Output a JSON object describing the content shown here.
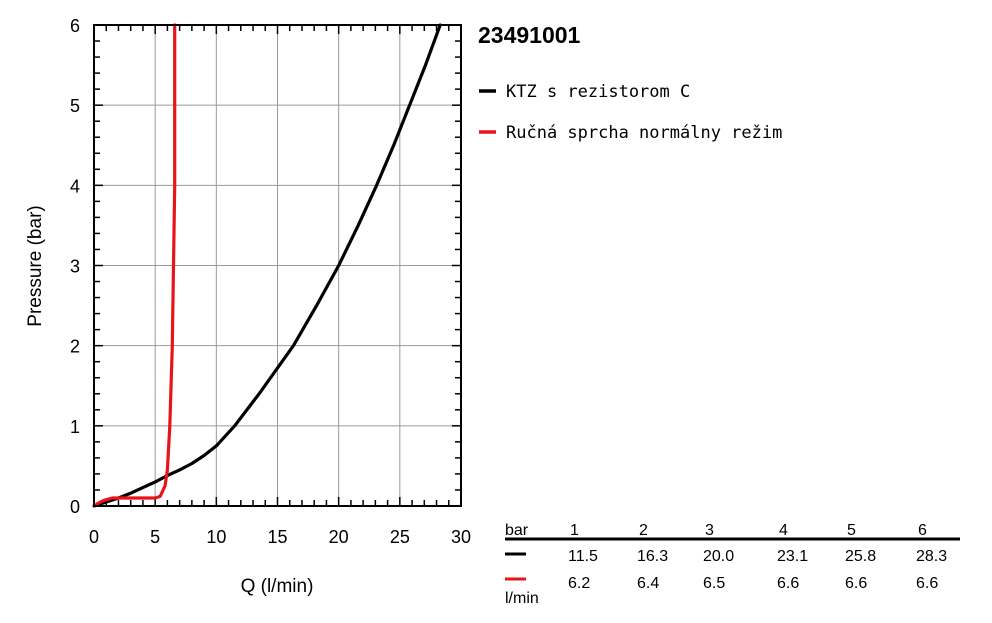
{
  "chart_data": {
    "type": "line",
    "title": "23491001",
    "xlabel": "Q (l/min)",
    "ylabel": "Pressure (bar)",
    "xlim": [
      0,
      30
    ],
    "ylim": [
      0,
      6
    ],
    "xticks": [
      "0",
      "5",
      "10",
      "15",
      "20",
      "25",
      "30"
    ],
    "yticks": [
      "0",
      "1",
      "2",
      "3",
      "4",
      "5",
      "6"
    ],
    "grid": true,
    "legend_position": "right",
    "series": [
      {
        "name": "KTZ s rezistorom C",
        "color": "#000000",
        "points": [
          [
            0,
            0
          ],
          [
            1,
            0.05
          ],
          [
            2,
            0.1
          ],
          [
            3,
            0.16
          ],
          [
            4,
            0.23
          ],
          [
            5,
            0.3
          ],
          [
            6,
            0.38
          ],
          [
            7,
            0.45
          ],
          [
            8,
            0.53
          ],
          [
            9,
            0.63
          ],
          [
            10,
            0.75
          ],
          [
            11.5,
            1
          ],
          [
            13.5,
            1.4
          ],
          [
            16.3,
            2
          ],
          [
            18.2,
            2.5
          ],
          [
            20,
            3
          ],
          [
            21.6,
            3.5
          ],
          [
            23.1,
            4
          ],
          [
            24.5,
            4.5
          ],
          [
            25.8,
            5
          ],
          [
            27.1,
            5.5
          ],
          [
            28.3,
            6
          ]
        ]
      },
      {
        "name": "Ručná sprcha normálny režim",
        "color": "#e8141a",
        "points": [
          [
            0,
            0
          ],
          [
            0.3,
            0.03
          ],
          [
            0.8,
            0.07
          ],
          [
            1.5,
            0.1
          ],
          [
            3,
            0.1
          ],
          [
            5,
            0.1
          ],
          [
            5.4,
            0.12
          ],
          [
            5.8,
            0.25
          ],
          [
            6.0,
            0.45
          ],
          [
            6.2,
            1
          ],
          [
            6.4,
            2
          ],
          [
            6.5,
            3
          ],
          [
            6.6,
            4
          ],
          [
            6.6,
            5
          ],
          [
            6.6,
            6
          ]
        ]
      }
    ],
    "table": {
      "header_label": "bar",
      "unit_label": "l/min",
      "columns": [
        "1",
        "2",
        "3",
        "4",
        "5",
        "6"
      ],
      "rows": [
        {
          "color": "#000000",
          "values": [
            "11.5",
            "16.3",
            "20.0",
            "23.1",
            "25.8",
            "28.3"
          ]
        },
        {
          "color": "#e8141a",
          "values": [
            "6.2",
            "6.4",
            "6.5",
            "6.6",
            "6.6",
            "6.6"
          ]
        }
      ]
    }
  }
}
